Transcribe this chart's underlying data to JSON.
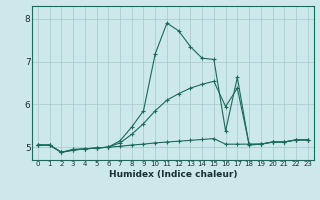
{
  "xlabel": "Humidex (Indice chaleur)",
  "bg_color": "#cce8ea",
  "line_color": "#1a6b5a",
  "grid_color": "#a8c8cc",
  "xlim": [
    -0.5,
    23.5
  ],
  "ylim": [
    4.7,
    8.3
  ],
  "yticks": [
    5,
    6,
    7,
    8
  ],
  "xticks": [
    0,
    1,
    2,
    3,
    4,
    5,
    6,
    7,
    8,
    9,
    10,
    11,
    12,
    13,
    14,
    15,
    16,
    17,
    18,
    19,
    20,
    21,
    22,
    23
  ],
  "series": [
    {
      "x": [
        0,
        1,
        2,
        3,
        4,
        5,
        6,
        7,
        8,
        9,
        10,
        11,
        12,
        13,
        14,
        15,
        16,
        17,
        18,
        19,
        20,
        21,
        22,
        23
      ],
      "y": [
        5.05,
        5.05,
        4.88,
        4.93,
        4.96,
        4.98,
        5.0,
        5.02,
        5.05,
        5.07,
        5.1,
        5.12,
        5.14,
        5.16,
        5.18,
        5.2,
        5.07,
        5.07,
        5.07,
        5.07,
        5.12,
        5.12,
        5.17,
        5.17
      ]
    },
    {
      "x": [
        0,
        1,
        2,
        3,
        4,
        5,
        6,
        7,
        8,
        9,
        10,
        11,
        12,
        13,
        14,
        15,
        16,
        17,
        18,
        19,
        20,
        21,
        22,
        23
      ],
      "y": [
        5.05,
        5.05,
        4.88,
        4.93,
        4.96,
        4.98,
        5.0,
        5.1,
        5.3,
        5.55,
        5.85,
        6.1,
        6.25,
        6.38,
        6.47,
        6.54,
        5.95,
        6.38,
        5.07,
        5.07,
        5.12,
        5.12,
        5.17,
        5.17
      ]
    },
    {
      "x": [
        0,
        1,
        2,
        3,
        4,
        5,
        6,
        7,
        8,
        9,
        10,
        11,
        12,
        13,
        14,
        15,
        16,
        17,
        18,
        19,
        20,
        21,
        22,
        23
      ],
      "y": [
        5.05,
        5.05,
        4.88,
        4.95,
        4.96,
        4.98,
        5.0,
        5.15,
        5.47,
        5.85,
        7.18,
        7.9,
        7.72,
        7.35,
        7.08,
        7.05,
        5.38,
        6.63,
        5.05,
        5.07,
        5.12,
        5.12,
        5.17,
        5.17
      ]
    }
  ]
}
